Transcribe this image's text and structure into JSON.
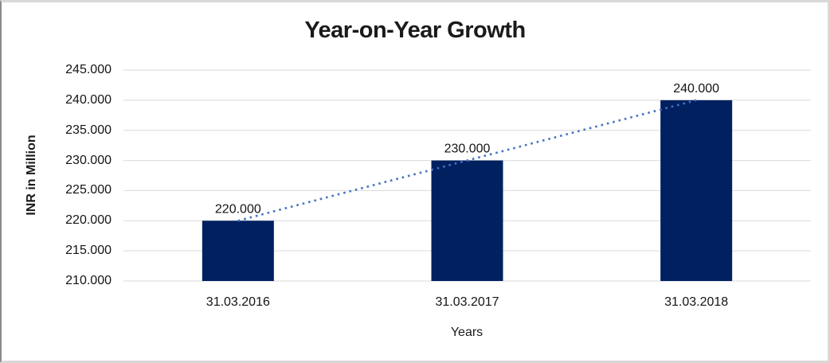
{
  "chart_data": {
    "type": "bar",
    "title": "Year-on-Year Growth",
    "xlabel": "Years",
    "ylabel": "INR in Million",
    "categories": [
      "31.03.2016",
      "31.03.2017",
      "31.03.2018"
    ],
    "values": [
      220,
      230,
      240
    ],
    "value_labels": [
      "220.000",
      "230.000",
      "240.000"
    ],
    "ylim": [
      210,
      245
    ],
    "ytick_step": 5,
    "ytick_labels": [
      "210.000",
      "215.000",
      "220.000",
      "225.000",
      "230.000",
      "235.000",
      "240.000",
      "245.000"
    ],
    "grid": true,
    "legend": "none",
    "trendline": {
      "type": "linear",
      "style": "dotted",
      "from_value": 220,
      "to_value": 240
    },
    "colors": {
      "bar": "#002060",
      "trendline": "#4472C4",
      "gridline": "#D9D9D9",
      "text": "#141414",
      "title_text": "#1A1A1A"
    }
  }
}
